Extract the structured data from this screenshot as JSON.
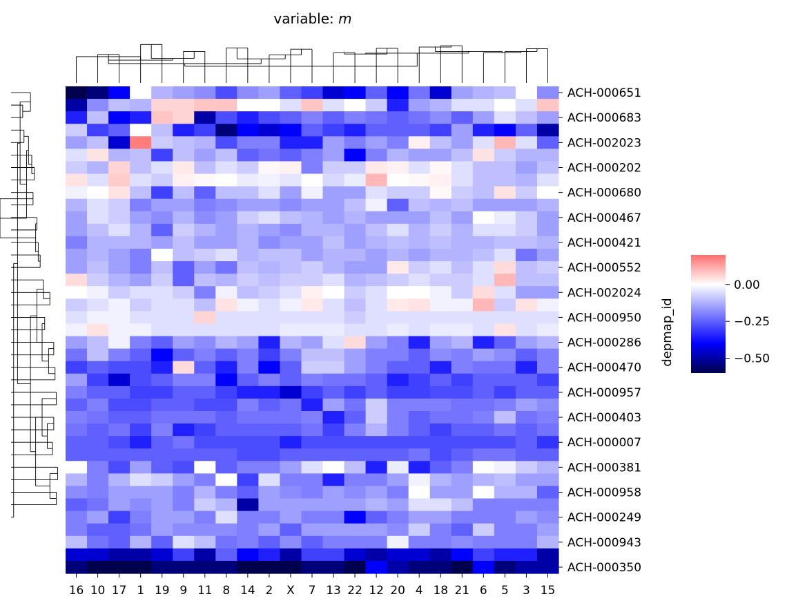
{
  "chart_data": {
    "type": "heatmap",
    "title_prefix": "variable: ",
    "title_var": "m",
    "ylabel": "depmap_id",
    "columns": [
      "16",
      "10",
      "17",
      "1",
      "19",
      "9",
      "11",
      "8",
      "14",
      "2",
      "X",
      "7",
      "13",
      "22",
      "12",
      "20",
      "4",
      "18",
      "21",
      "6",
      "5",
      "3",
      "15"
    ],
    "row_labels": [
      "ACH-000651",
      "ACH-000683",
      "ACH-002023",
      "ACH-000202",
      "ACH-000680",
      "ACH-000467",
      "ACH-000421",
      "ACH-000552",
      "ACH-002024",
      "ACH-000950",
      "ACH-000286",
      "ACH-000470",
      "ACH-000957",
      "ACH-000403",
      "ACH-000007",
      "ACH-000381",
      "ACH-000958",
      "ACH-000249",
      "ACH-000943",
      "ACH-000350"
    ],
    "row_count": 39,
    "colorbar": {
      "min": -0.6,
      "max": 0.2,
      "ticks": [
        {
          "value": 0.0,
          "label": "0.00"
        },
        {
          "value": -0.25,
          "label": "−0.25"
        },
        {
          "value": -0.5,
          "label": "−0.50"
        }
      ]
    },
    "values": [
      [
        -0.6,
        -0.55,
        -0.4,
        0.0,
        -0.12,
        -0.15,
        -0.18,
        -0.28,
        -0.18,
        -0.15,
        -0.25,
        -0.3,
        -0.45,
        -0.4,
        -0.25,
        -0.4,
        -0.22,
        -0.45,
        -0.15,
        -0.12,
        -0.1,
        0.0,
        -0.18
      ],
      [
        -0.5,
        -0.18,
        -0.1,
        -0.12,
        0.06,
        0.06,
        0.08,
        0.08,
        0.0,
        0.0,
        -0.05,
        0.08,
        -0.05,
        0.0,
        -0.08,
        -0.35,
        -0.15,
        -0.12,
        -0.05,
        -0.05,
        0.0,
        -0.05,
        0.08
      ],
      [
        -0.35,
        -0.1,
        -0.4,
        -0.35,
        0.08,
        0.06,
        -0.5,
        -0.28,
        -0.35,
        -0.28,
        -0.25,
        -0.2,
        -0.25,
        -0.2,
        -0.22,
        -0.25,
        -0.22,
        -0.18,
        -0.25,
        -0.15,
        -0.05,
        -0.1,
        -0.15
      ],
      [
        -0.08,
        -0.3,
        -0.25,
        0.0,
        -0.1,
        -0.35,
        -0.3,
        -0.55,
        -0.4,
        -0.45,
        -0.4,
        -0.25,
        -0.3,
        -0.35,
        -0.25,
        -0.25,
        -0.25,
        -0.3,
        -0.15,
        -0.35,
        -0.4,
        -0.25,
        -0.5
      ],
      [
        -0.15,
        -0.1,
        -0.45,
        0.18,
        -0.08,
        -0.1,
        -0.12,
        -0.28,
        -0.2,
        -0.2,
        -0.35,
        -0.35,
        -0.15,
        -0.2,
        -0.15,
        -0.2,
        0.02,
        -0.1,
        -0.15,
        -0.05,
        0.1,
        -0.05,
        -0.25
      ],
      [
        -0.05,
        0.04,
        -0.12,
        -0.1,
        -0.3,
        -0.1,
        -0.15,
        -0.1,
        -0.25,
        -0.22,
        -0.25,
        -0.2,
        -0.15,
        -0.4,
        -0.2,
        -0.12,
        -0.15,
        -0.15,
        -0.1,
        0.04,
        -0.08,
        -0.12,
        -0.12
      ],
      [
        -0.08,
        -0.12,
        0.06,
        -0.1,
        -0.05,
        0.03,
        -0.1,
        -0.05,
        -0.08,
        0.01,
        0.02,
        -0.2,
        -0.08,
        -0.08,
        0.03,
        0.02,
        -0.05,
        0.01,
        -0.05,
        -0.1,
        -0.1,
        -0.15,
        -0.1
      ],
      [
        0.04,
        -0.05,
        0.07,
        -0.05,
        -0.08,
        0.02,
        0.01,
        0.0,
        -0.03,
        -0.02,
        -0.04,
        0.0,
        -0.06,
        -0.03,
        0.1,
        0.0,
        0.01,
        0.02,
        -0.05,
        -0.1,
        -0.1,
        -0.12,
        -0.05
      ],
      [
        -0.02,
        0.0,
        0.04,
        -0.1,
        -0.3,
        -0.1,
        -0.25,
        -0.1,
        -0.1,
        -0.05,
        -0.15,
        -0.02,
        -0.15,
        -0.15,
        -0.05,
        -0.08,
        -0.08,
        0.01,
        -0.08,
        -0.1,
        0.04,
        -0.08,
        0.0
      ],
      [
        -0.12,
        -0.05,
        -0.08,
        -0.2,
        -0.15,
        -0.15,
        -0.2,
        -0.18,
        -0.15,
        -0.15,
        -0.18,
        -0.15,
        -0.15,
        -0.1,
        -0.02,
        -0.25,
        -0.1,
        -0.12,
        -0.1,
        -0.15,
        -0.15,
        -0.15,
        -0.12
      ],
      [
        -0.15,
        -0.05,
        -0.08,
        -0.15,
        -0.18,
        -0.12,
        -0.18,
        -0.15,
        -0.08,
        -0.05,
        -0.1,
        -0.12,
        -0.15,
        -0.12,
        -0.15,
        -0.15,
        -0.15,
        -0.1,
        -0.15,
        0.0,
        -0.03,
        -0.08,
        -0.15
      ],
      [
        -0.15,
        -0.1,
        -0.05,
        -0.12,
        -0.25,
        -0.08,
        -0.12,
        -0.15,
        -0.12,
        -0.15,
        -0.18,
        -0.12,
        -0.12,
        -0.15,
        -0.1,
        -0.05,
        -0.12,
        -0.08,
        -0.12,
        -0.05,
        -0.05,
        -0.08,
        -0.15
      ],
      [
        -0.2,
        -0.12,
        -0.12,
        -0.12,
        -0.15,
        -0.1,
        -0.15,
        -0.15,
        -0.12,
        -0.18,
        -0.15,
        -0.15,
        -0.1,
        -0.15,
        -0.12,
        -0.1,
        -0.12,
        -0.1,
        -0.12,
        -0.12,
        -0.1,
        -0.1,
        -0.12
      ],
      [
        -0.15,
        -0.12,
        -0.15,
        -0.2,
        0.0,
        -0.1,
        -0.08,
        -0.05,
        -0.12,
        -0.1,
        -0.1,
        -0.15,
        -0.12,
        -0.12,
        -0.15,
        -0.12,
        -0.15,
        -0.12,
        -0.12,
        -0.1,
        -0.05,
        -0.22,
        -0.15
      ],
      [
        -0.15,
        -0.1,
        -0.15,
        -0.2,
        -0.1,
        -0.25,
        -0.15,
        -0.22,
        -0.1,
        -0.12,
        -0.1,
        -0.08,
        -0.12,
        -0.15,
        -0.15,
        0.03,
        -0.08,
        -0.05,
        -0.1,
        -0.05,
        0.05,
        -0.1,
        -0.08
      ],
      [
        0.05,
        -0.08,
        -0.12,
        -0.15,
        -0.08,
        -0.25,
        -0.1,
        -0.12,
        -0.08,
        -0.1,
        -0.08,
        -0.08,
        -0.05,
        -0.12,
        -0.1,
        -0.08,
        -0.05,
        -0.08,
        -0.08,
        -0.05,
        0.1,
        -0.1,
        -0.1
      ],
      [
        0.0,
        -0.02,
        -0.08,
        -0.05,
        -0.05,
        -0.08,
        -0.2,
        -0.02,
        -0.1,
        -0.08,
        -0.05,
        0.02,
        0.0,
        -0.08,
        -0.05,
        0.0,
        0.0,
        -0.02,
        -0.08,
        0.05,
        -0.05,
        -0.15,
        -0.15
      ],
      [
        -0.08,
        -0.05,
        -0.02,
        -0.08,
        -0.05,
        -0.05,
        -0.1,
        0.04,
        -0.02,
        -0.05,
        -0.02,
        0.03,
        -0.05,
        -0.1,
        -0.05,
        0.03,
        0.04,
        -0.02,
        -0.02,
        0.1,
        -0.08,
        0.04,
        -0.02
      ],
      [
        -0.05,
        -0.02,
        -0.02,
        -0.05,
        -0.05,
        -0.05,
        0.06,
        -0.05,
        -0.05,
        -0.05,
        -0.05,
        -0.05,
        -0.05,
        -0.08,
        -0.05,
        -0.05,
        -0.05,
        -0.05,
        -0.05,
        -0.05,
        -0.05,
        -0.05,
        -0.05
      ],
      [
        -0.02,
        0.04,
        -0.02,
        -0.02,
        -0.05,
        -0.05,
        -0.05,
        -0.05,
        -0.05,
        -0.05,
        -0.03,
        -0.03,
        -0.03,
        -0.05,
        -0.05,
        -0.03,
        -0.05,
        -0.03,
        -0.03,
        -0.05,
        0.04,
        -0.05,
        -0.03
      ],
      [
        -0.15,
        -0.1,
        -0.02,
        -0.2,
        -0.25,
        -0.15,
        -0.18,
        -0.12,
        -0.15,
        -0.35,
        -0.12,
        -0.15,
        -0.05,
        0.05,
        -0.15,
        -0.2,
        -0.35,
        -0.15,
        -0.12,
        -0.35,
        -0.25,
        -0.15,
        -0.12
      ],
      [
        -0.22,
        -0.1,
        -0.2,
        -0.25,
        -0.4,
        -0.25,
        -0.2,
        -0.25,
        -0.2,
        -0.3,
        -0.2,
        -0.1,
        -0.1,
        -0.15,
        -0.2,
        -0.2,
        -0.25,
        -0.18,
        -0.2,
        -0.15,
        -0.18,
        -0.25,
        -0.2
      ],
      [
        -0.3,
        -0.25,
        -0.28,
        -0.28,
        -0.35,
        0.05,
        -0.25,
        -0.35,
        -0.2,
        -0.4,
        -0.25,
        -0.08,
        -0.08,
        -0.15,
        -0.2,
        -0.25,
        -0.25,
        -0.35,
        -0.2,
        -0.22,
        -0.22,
        -0.35,
        -0.2
      ],
      [
        -0.15,
        -0.3,
        -0.45,
        -0.28,
        -0.25,
        -0.2,
        -0.2,
        -0.4,
        -0.25,
        -0.2,
        -0.25,
        -0.2,
        -0.22,
        -0.22,
        -0.25,
        -0.35,
        -0.3,
        -0.25,
        -0.3,
        -0.25,
        -0.25,
        -0.25,
        -0.3
      ],
      [
        -0.2,
        -0.25,
        -0.25,
        -0.3,
        -0.3,
        -0.25,
        -0.25,
        -0.3,
        -0.35,
        -0.35,
        -0.45,
        -0.3,
        -0.25,
        -0.3,
        -0.25,
        -0.3,
        -0.3,
        -0.28,
        -0.28,
        -0.25,
        -0.3,
        -0.25,
        -0.25
      ],
      [
        -0.25,
        -0.2,
        -0.28,
        -0.28,
        -0.25,
        -0.25,
        -0.28,
        -0.28,
        -0.2,
        -0.25,
        -0.22,
        -0.35,
        -0.15,
        -0.22,
        -0.08,
        -0.2,
        -0.2,
        -0.2,
        -0.22,
        -0.22,
        -0.2,
        -0.15,
        -0.18
      ],
      [
        -0.2,
        -0.22,
        -0.25,
        -0.25,
        -0.22,
        -0.22,
        -0.22,
        -0.25,
        -0.22,
        -0.22,
        -0.22,
        -0.2,
        -0.35,
        -0.25,
        -0.08,
        -0.2,
        -0.25,
        -0.22,
        -0.22,
        -0.2,
        -0.1,
        -0.22,
        -0.2
      ],
      [
        -0.22,
        -0.25,
        -0.22,
        -0.3,
        -0.2,
        -0.35,
        -0.3,
        -0.25,
        -0.25,
        -0.25,
        -0.25,
        -0.22,
        -0.3,
        -0.2,
        -0.12,
        -0.2,
        -0.25,
        -0.3,
        -0.25,
        -0.25,
        -0.22,
        -0.25,
        -0.22
      ],
      [
        -0.25,
        -0.25,
        -0.28,
        -0.35,
        -0.25,
        -0.22,
        -0.28,
        -0.28,
        -0.28,
        -0.28,
        -0.35,
        -0.28,
        -0.28,
        -0.28,
        -0.28,
        -0.28,
        -0.28,
        -0.28,
        -0.28,
        -0.28,
        -0.28,
        -0.25,
        -0.32
      ],
      [
        -0.25,
        -0.25,
        -0.25,
        -0.25,
        -0.25,
        -0.25,
        -0.25,
        -0.25,
        -0.28,
        -0.28,
        -0.25,
        -0.25,
        -0.25,
        -0.25,
        -0.25,
        -0.25,
        -0.22,
        -0.28,
        -0.25,
        -0.22,
        -0.22,
        -0.25,
        -0.25
      ],
      [
        0.0,
        -0.2,
        -0.28,
        -0.15,
        -0.25,
        -0.28,
        0.0,
        -0.25,
        -0.2,
        -0.2,
        -0.15,
        -0.05,
        0.0,
        -0.1,
        -0.35,
        -0.03,
        -0.35,
        -0.25,
        -0.2,
        0.0,
        -0.02,
        -0.08,
        -0.12
      ],
      [
        -0.12,
        -0.2,
        -0.12,
        -0.05,
        -0.08,
        -0.15,
        -0.2,
        0.0,
        -0.3,
        -0.05,
        -0.2,
        -0.2,
        -0.35,
        -0.2,
        -0.2,
        -0.15,
        -0.02,
        -0.12,
        -0.15,
        -0.12,
        -0.1,
        -0.15,
        -0.15
      ],
      [
        -0.18,
        -0.2,
        -0.15,
        -0.15,
        -0.15,
        -0.2,
        -0.12,
        -0.2,
        -0.25,
        -0.15,
        -0.18,
        -0.2,
        -0.15,
        -0.18,
        -0.15,
        -0.2,
        0.0,
        -0.15,
        -0.15,
        0.0,
        -0.12,
        -0.12,
        -0.25
      ],
      [
        -0.25,
        -0.22,
        -0.15,
        -0.18,
        -0.15,
        -0.2,
        -0.08,
        -0.12,
        -0.5,
        -0.15,
        -0.15,
        -0.15,
        -0.15,
        -0.15,
        -0.12,
        -0.15,
        -0.05,
        -0.05,
        -0.1,
        -0.2,
        -0.2,
        -0.2,
        -0.2
      ],
      [
        -0.2,
        -0.15,
        -0.3,
        -0.2,
        -0.15,
        -0.15,
        -0.2,
        -0.05,
        -0.2,
        -0.2,
        -0.15,
        -0.2,
        -0.2,
        -0.4,
        -0.25,
        -0.2,
        -0.15,
        -0.15,
        -0.2,
        -0.2,
        -0.2,
        -0.15,
        -0.18
      ],
      [
        -0.2,
        -0.25,
        -0.25,
        -0.22,
        -0.15,
        -0.18,
        -0.18,
        -0.18,
        -0.2,
        -0.15,
        -0.25,
        -0.15,
        -0.15,
        -0.15,
        -0.15,
        -0.18,
        -0.08,
        -0.2,
        -0.25,
        -0.08,
        -0.2,
        -0.2,
        -0.15
      ],
      [
        -0.1,
        -0.22,
        -0.25,
        -0.12,
        -0.25,
        -0.05,
        -0.1,
        -0.22,
        -0.2,
        -0.25,
        -0.18,
        -0.25,
        -0.2,
        -0.2,
        -0.2,
        -0.02,
        -0.2,
        -0.2,
        -0.18,
        -0.2,
        -0.2,
        -0.2,
        -0.12
      ],
      [
        -0.45,
        -0.45,
        -0.5,
        -0.5,
        -0.45,
        -0.3,
        -0.5,
        -0.25,
        -0.4,
        -0.35,
        -0.5,
        -0.3,
        -0.3,
        -0.45,
        -0.5,
        -0.45,
        -0.45,
        -0.5,
        -0.4,
        -0.3,
        -0.35,
        -0.35,
        -0.5
      ],
      [
        -0.55,
        -0.6,
        -0.65,
        -0.6,
        -0.55,
        -0.55,
        -0.55,
        -0.55,
        -0.6,
        -0.6,
        -0.6,
        -0.55,
        -0.55,
        -0.6,
        -0.4,
        -0.5,
        -0.55,
        -0.55,
        -0.6,
        -0.4,
        -0.55,
        -0.5,
        -0.5
      ]
    ],
    "legend_placement": "right"
  }
}
